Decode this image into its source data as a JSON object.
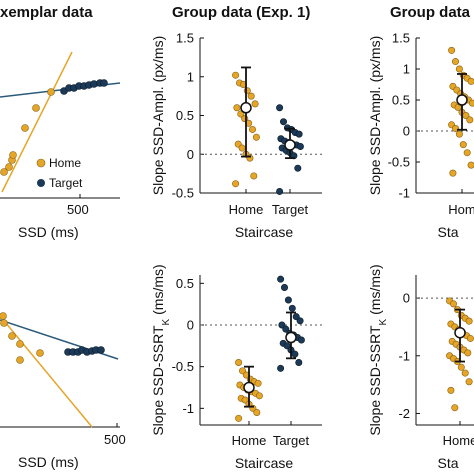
{
  "titles": {
    "exemplar": "xemplar data",
    "group_exp1": "Group data (Exp. 1)",
    "group_exp2": "Group data"
  },
  "colors": {
    "home": "#e5a528",
    "target": "#1c3a57",
    "axis": "#111111",
    "zero_line": "#555555"
  },
  "legend": {
    "home": "Home",
    "target": "Target"
  },
  "chart_data": [
    {
      "id": "exemplar-top",
      "type": "scatter",
      "title": "xemplar data",
      "xlabel": "SSD (ms)",
      "xticks": [
        "500"
      ],
      "series": [
        {
          "name": "Home",
          "color": "#e5a528",
          "style": "points+fit"
        },
        {
          "name": "Target",
          "color": "#1c3a57",
          "style": "points+fit"
        }
      ],
      "legend_position": "bottom-right"
    },
    {
      "id": "group1-top",
      "type": "scatter",
      "title": "Group data (Exp. 1)",
      "ylabel": "Slope SSD-Ampl. (px/ms)",
      "xlabel": "Staircase",
      "categories": [
        "Home",
        "Target"
      ],
      "ylim": [
        -0.5,
        1.5
      ],
      "yticks": [
        "-0.5",
        "0",
        "0.5",
        "1",
        "1.5"
      ],
      "points": {
        "Home": [
          1.02,
          0.92,
          0.9,
          0.82,
          0.75,
          0.65,
          0.6,
          0.52,
          0.46,
          0.4,
          0.32,
          0.22,
          0.13,
          0.08,
          0.0,
          -0.05,
          -0.28,
          -0.38
        ],
        "Target": [
          0.6,
          0.42,
          0.34,
          0.32,
          0.28,
          0.26,
          0.2,
          0.17,
          0.15,
          0.13,
          0.12,
          0.1,
          0.08,
          0.05,
          0.02,
          -0.02,
          -0.18,
          -0.48
        ]
      },
      "summary": {
        "Home": {
          "mean": 0.6,
          "low": -0.03,
          "high": 1.12
        },
        "Target": {
          "mean": 0.12,
          "low": -0.05,
          "high": 0.33
        }
      },
      "reference_line": 0
    },
    {
      "id": "group2-top",
      "type": "scatter",
      "title": "Group data",
      "ylabel": "Slope SSD-Ampl. (px/ms)",
      "xlabel": "Staircase",
      "categories": [
        "Home"
      ],
      "xtick_visible": "Hom",
      "xlabel_visible": "Sta",
      "ylim": [
        -1,
        1.5
      ],
      "yticks": [
        "-1",
        "-0.5",
        "0",
        "0.5",
        "1",
        "1.5"
      ],
      "points": {
        "Home": [
          1.3,
          1.12,
          1.0,
          0.9,
          0.85,
          0.8,
          0.72,
          0.66,
          0.6,
          0.55,
          0.5,
          0.45,
          0.42,
          0.38,
          0.3,
          0.25,
          0.18,
          0.1,
          0.04,
          -0.05,
          -0.22,
          -0.35,
          -0.55,
          -0.68
        ]
      },
      "summary": {
        "Home": {
          "mean": 0.5,
          "low": 0.02,
          "high": 0.92
        }
      },
      "reference_line": 0
    },
    {
      "id": "exemplar-bottom",
      "type": "scatter",
      "xlabel": "SSD (ms)",
      "xticks": [
        "500"
      ],
      "series": [
        {
          "name": "Home",
          "color": "#e5a528",
          "style": "points+fit"
        },
        {
          "name": "Target",
          "color": "#1c3a57",
          "style": "points+fit"
        }
      ]
    },
    {
      "id": "group1-bottom",
      "type": "scatter",
      "ylabel": "Slope SSD-SSRT_K (ms/ms)",
      "xlabel": "Staircase",
      "categories": [
        "Home",
        "Target"
      ],
      "ylim": [
        -1.2,
        0.6
      ],
      "yticks": [
        "-1",
        "-0.5",
        "0",
        "0.5"
      ],
      "points": {
        "Home": [
          -0.45,
          -0.55,
          -0.6,
          -0.65,
          -0.68,
          -0.7,
          -0.72,
          -0.75,
          -0.78,
          -0.8,
          -0.82,
          -0.85,
          -0.88,
          -0.9,
          -0.95,
          -1.0,
          -1.05,
          -1.12
        ],
        "Target": [
          0.55,
          0.45,
          0.3,
          0.2,
          0.1,
          0.05,
          0.0,
          -0.05,
          -0.1,
          -0.12,
          -0.15,
          -0.18,
          -0.22,
          -0.25,
          -0.3,
          -0.35,
          -0.45,
          -0.52
        ]
      },
      "summary": {
        "Home": {
          "mean": -0.75,
          "low": -0.98,
          "high": -0.5
        },
        "Target": {
          "mean": -0.15,
          "low": -0.4,
          "high": 0.15
        }
      },
      "reference_line": 0
    },
    {
      "id": "group2-bottom",
      "type": "scatter",
      "ylabel": "Slope SSD-SSRT_K (ms/ms)",
      "xlabel": "Staircase",
      "categories": [
        "Home"
      ],
      "xtick_visible": "Home",
      "xlabel_visible": "Sta",
      "ylim": [
        -2.2,
        0.4
      ],
      "yticks": [
        "-2",
        "-1",
        "0"
      ],
      "points": {
        "Home": [
          -0.05,
          -0.1,
          -0.2,
          -0.3,
          -0.35,
          -0.4,
          -0.45,
          -0.5,
          -0.55,
          -0.6,
          -0.65,
          -0.7,
          -0.75,
          -0.8,
          -0.85,
          -0.9,
          -0.95,
          -1.0,
          -1.05,
          -1.1,
          -1.2,
          -1.3,
          -1.45,
          -1.6,
          -1.9
        ]
      },
      "summary": {
        "Home": {
          "mean": -0.6,
          "low": -1.1,
          "high": -0.2
        }
      },
      "reference_line": 0
    }
  ]
}
